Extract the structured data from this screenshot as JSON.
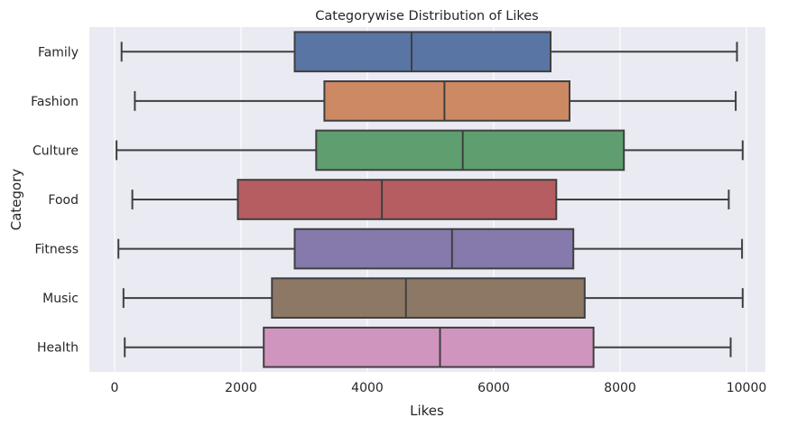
{
  "chart_data": {
    "type": "box",
    "orientation": "horizontal",
    "title": "Categorywise Distribution of Likes",
    "xlabel": "Likes",
    "ylabel": "Category",
    "xlim": [
      -400,
      10300
    ],
    "xticks": [
      0,
      2000,
      4000,
      6000,
      8000,
      10000
    ],
    "xtick_labels": [
      "0",
      "2000",
      "4000",
      "6000",
      "8000",
      "10000"
    ],
    "grid": true,
    "categories": [
      "Family",
      "Fashion",
      "Culture",
      "Food",
      "Fitness",
      "Music",
      "Health"
    ],
    "boxes": [
      {
        "category": "Family",
        "min": 110,
        "q1": 2850,
        "median": 4700,
        "q3": 6900,
        "max": 9850,
        "color": "#5875a4"
      },
      {
        "category": "Fashion",
        "min": 320,
        "q1": 3320,
        "median": 5220,
        "q3": 7200,
        "max": 9830,
        "color": "#cc8963"
      },
      {
        "category": "Culture",
        "min": 30,
        "q1": 3190,
        "median": 5510,
        "q3": 8060,
        "max": 9940,
        "color": "#5f9e6e"
      },
      {
        "category": "Food",
        "min": 280,
        "q1": 1950,
        "median": 4230,
        "q3": 6990,
        "max": 9720,
        "color": "#b55d60"
      },
      {
        "category": "Fitness",
        "min": 60,
        "q1": 2850,
        "median": 5340,
        "q3": 7260,
        "max": 9930,
        "color": "#857aab"
      },
      {
        "category": "Music",
        "min": 140,
        "q1": 2490,
        "median": 4610,
        "q3": 7440,
        "max": 9940,
        "color": "#8d7866"
      },
      {
        "category": "Health",
        "min": 160,
        "q1": 2360,
        "median": 5150,
        "q3": 7580,
        "max": 9750,
        "color": "#d095bf"
      }
    ],
    "background_color": "#eaeaf2",
    "line_color": "#3f3f3f"
  }
}
